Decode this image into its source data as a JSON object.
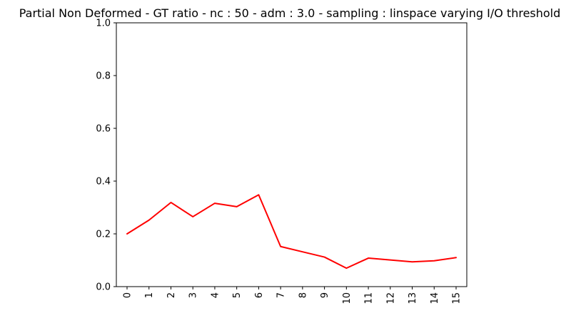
{
  "chart_data": {
    "type": "line",
    "title": "Partial Non Deformed - GT ratio - nc : 50 - adm : 3.0 - sampling : linspace varying I/O threshold",
    "xlabel": "",
    "ylabel": "",
    "categories": [
      "0",
      "1",
      "2",
      "3",
      "4",
      "5",
      "6",
      "7",
      "8",
      "9",
      "10",
      "11",
      "12",
      "13",
      "14",
      "15"
    ],
    "series": [
      {
        "values": [
          0.2,
          0.252,
          0.319,
          0.265,
          0.316,
          0.303,
          0.348,
          0.152,
          0.132,
          0.112,
          0.07,
          0.108,
          0.101,
          0.094,
          0.098,
          0.11
        ],
        "color": "#ff0000"
      }
    ],
    "ylim": [
      0,
      1.0
    ],
    "yticks": [
      "0.0",
      "0.2",
      "0.4",
      "0.6",
      "0.8",
      "1.0"
    ],
    "grid": false,
    "xtick_rotation": "vertical"
  }
}
